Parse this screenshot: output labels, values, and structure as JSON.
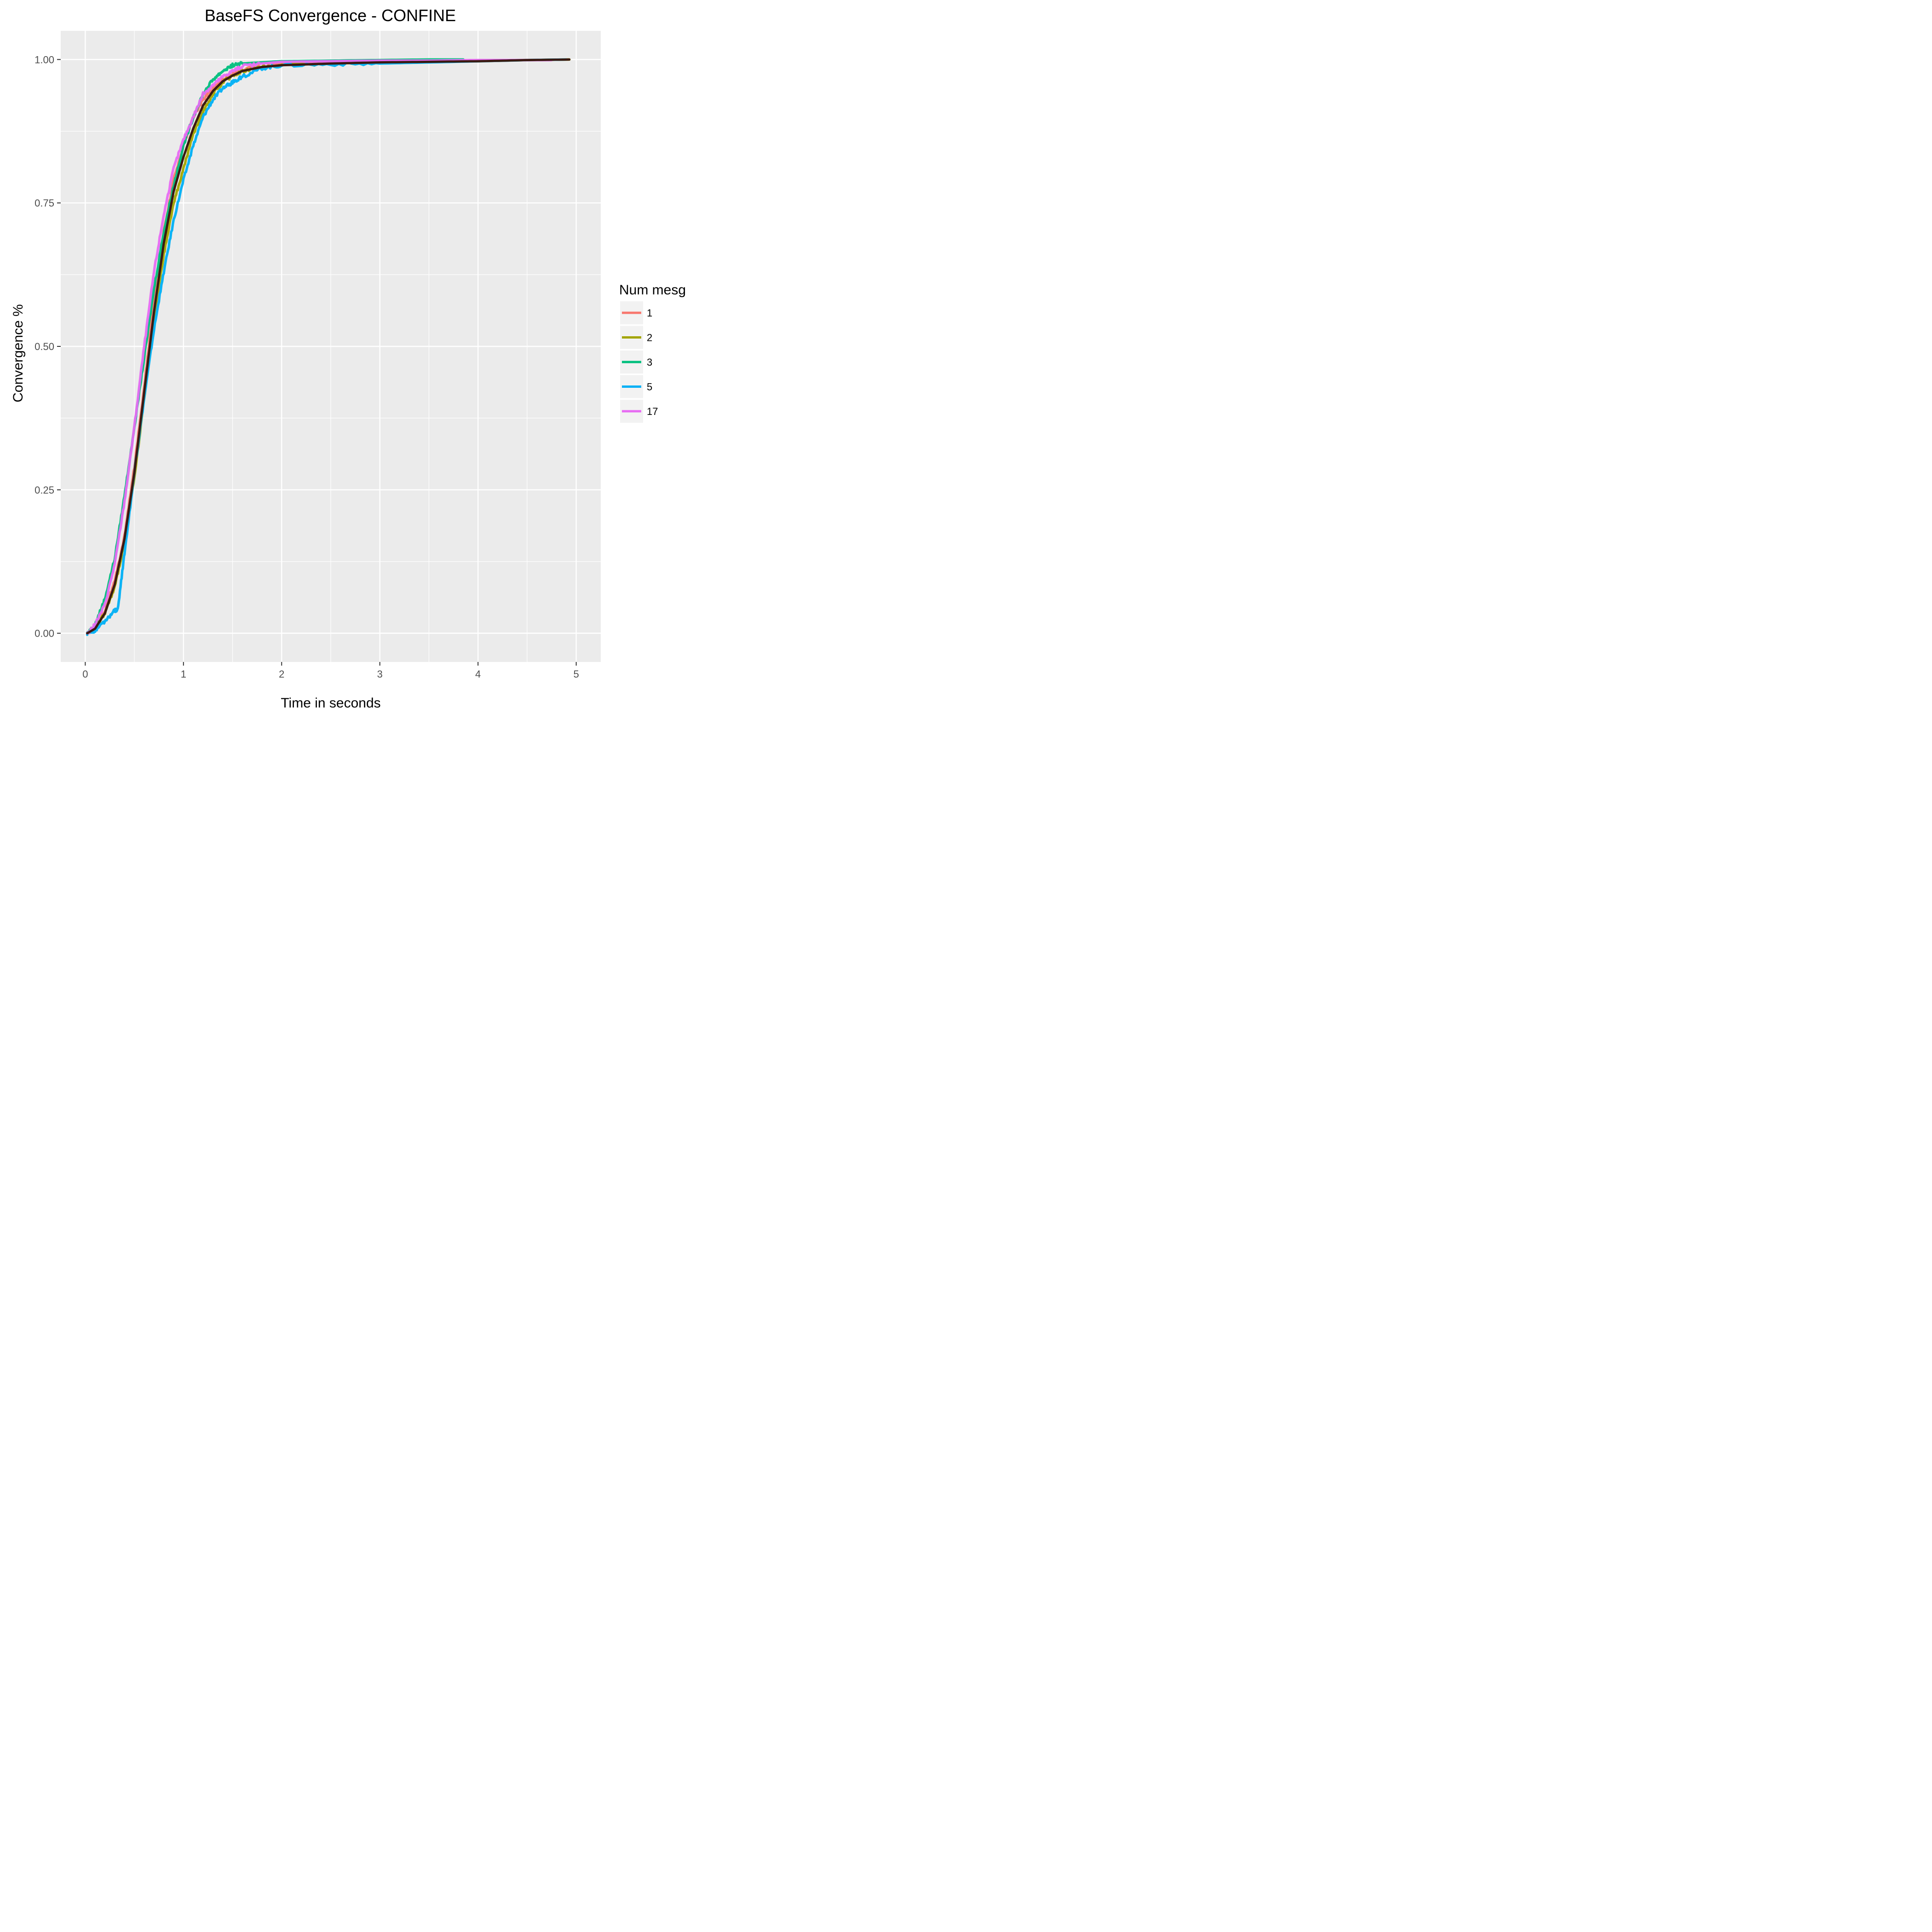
{
  "chart_data": {
    "type": "line",
    "title": "BaseFS Convergence - CONFINE",
    "xlabel": "Time in seconds",
    "ylabel": "Convergence %",
    "xlim": [
      -0.25,
      5.25
    ],
    "ylim": [
      -0.05,
      1.05
    ],
    "x_ticks": [
      0,
      1,
      2,
      3,
      4,
      5
    ],
    "x_tick_labels": [
      "0",
      "1",
      "2",
      "3",
      "4",
      "5"
    ],
    "x_minor_ticks": [
      0.5,
      1.5,
      2.5,
      3.5,
      4.5
    ],
    "y_ticks": [
      0.0,
      0.25,
      0.5,
      0.75,
      1.0
    ],
    "y_tick_labels": [
      "0.00",
      "0.25",
      "0.50",
      "0.75",
      "1.00"
    ],
    "y_minor_ticks": [
      0.125,
      0.375,
      0.625,
      0.875
    ],
    "grid": true,
    "panel_background": "#ebebeb",
    "grid_color": "#ffffff",
    "legend": {
      "title": "Num mesg",
      "position": "right",
      "key_background": "#f2f2f2"
    },
    "series": [
      {
        "name": "1",
        "color": "#F8766D",
        "x": [
          0.02,
          0.1,
          0.2,
          0.3,
          0.4,
          0.5,
          0.6,
          0.7,
          0.8,
          0.9,
          1.0,
          1.1,
          1.2,
          1.3,
          1.4,
          1.5,
          1.6,
          1.8,
          2.0,
          2.5,
          3.0,
          3.5,
          4.0,
          4.5,
          4.92
        ],
        "y": [
          0.0,
          0.01,
          0.04,
          0.09,
          0.17,
          0.29,
          0.43,
          0.58,
          0.7,
          0.79,
          0.85,
          0.9,
          0.93,
          0.95,
          0.965,
          0.975,
          0.982,
          0.988,
          0.992,
          0.995,
          0.996,
          0.997,
          0.998,
          0.999,
          1.0
        ]
      },
      {
        "name": "2",
        "color": "#A3A500",
        "x": [
          0.02,
          0.1,
          0.2,
          0.3,
          0.4,
          0.5,
          0.6,
          0.7,
          0.8,
          0.9,
          1.0,
          1.1,
          1.2,
          1.3,
          1.4,
          1.5,
          1.6,
          1.8,
          2.0,
          2.5,
          3.0,
          3.5,
          4.0,
          4.5,
          4.93
        ],
        "y": [
          0.0,
          0.01,
          0.035,
          0.08,
          0.16,
          0.27,
          0.41,
          0.55,
          0.66,
          0.75,
          0.81,
          0.87,
          0.91,
          0.94,
          0.96,
          0.972,
          0.98,
          0.987,
          0.99,
          0.993,
          0.995,
          0.996,
          0.997,
          0.999,
          1.0
        ]
      },
      {
        "name": "3",
        "color": "#00BF7D",
        "x": [
          0.02,
          0.1,
          0.2,
          0.3,
          0.4,
          0.5,
          0.6,
          0.7,
          0.8,
          0.9,
          1.0,
          1.1,
          1.2,
          1.3,
          1.4,
          1.5,
          1.6,
          1.8,
          2.0,
          2.5,
          3.0,
          3.5,
          3.85
        ],
        "y": [
          0.0,
          0.015,
          0.06,
          0.13,
          0.24,
          0.36,
          0.48,
          0.6,
          0.7,
          0.78,
          0.85,
          0.9,
          0.94,
          0.965,
          0.98,
          0.99,
          0.993,
          0.995,
          0.997,
          0.998,
          0.999,
          1.0,
          1.0
        ]
      },
      {
        "name": "5",
        "color": "#00B0F6",
        "x": [
          0.02,
          0.1,
          0.2,
          0.3,
          0.33,
          0.4,
          0.5,
          0.6,
          0.7,
          0.8,
          0.9,
          1.0,
          1.1,
          1.2,
          1.3,
          1.4,
          1.5,
          1.6,
          1.8,
          2.0,
          2.5,
          3.0,
          3.5,
          4.0,
          4.5,
          4.9
        ],
        "y": [
          0.0,
          0.005,
          0.02,
          0.04,
          0.04,
          0.14,
          0.28,
          0.41,
          0.53,
          0.63,
          0.72,
          0.79,
          0.85,
          0.9,
          0.93,
          0.95,
          0.96,
          0.97,
          0.985,
          0.99,
          0.992,
          0.993,
          0.995,
          0.997,
          0.999,
          1.0
        ]
      },
      {
        "name": "17",
        "color": "#E76BF3",
        "x": [
          0.02,
          0.1,
          0.2,
          0.3,
          0.4,
          0.5,
          0.6,
          0.7,
          0.8,
          0.9,
          1.0,
          1.1,
          1.2,
          1.3,
          1.4,
          1.5,
          1.6,
          1.8,
          2.0,
          2.5,
          3.0,
          3.5,
          4.0,
          4.5,
          4.75
        ],
        "y": [
          0.0,
          0.015,
          0.05,
          0.12,
          0.23,
          0.36,
          0.5,
          0.63,
          0.73,
          0.81,
          0.86,
          0.9,
          0.94,
          0.955,
          0.97,
          0.98,
          0.988,
          0.993,
          0.996,
          0.997,
          0.998,
          0.998,
          0.999,
          0.999,
          0.999
        ]
      },
      {
        "name": "",
        "color": "#3a1a12",
        "x": [
          0.02,
          0.1,
          0.2,
          0.3,
          0.4,
          0.5,
          0.6,
          0.7,
          0.8,
          0.9,
          1.0,
          1.1,
          1.2,
          1.3,
          1.4,
          1.5,
          1.6,
          1.8,
          2.0,
          2.5,
          3.0,
          3.5,
          4.0,
          4.5,
          4.93
        ],
        "y": [
          0.0,
          0.008,
          0.035,
          0.085,
          0.165,
          0.28,
          0.42,
          0.56,
          0.68,
          0.77,
          0.83,
          0.88,
          0.92,
          0.945,
          0.962,
          0.972,
          0.98,
          0.987,
          0.99,
          0.993,
          0.995,
          0.996,
          0.997,
          0.999,
          1.0
        ]
      }
    ]
  }
}
